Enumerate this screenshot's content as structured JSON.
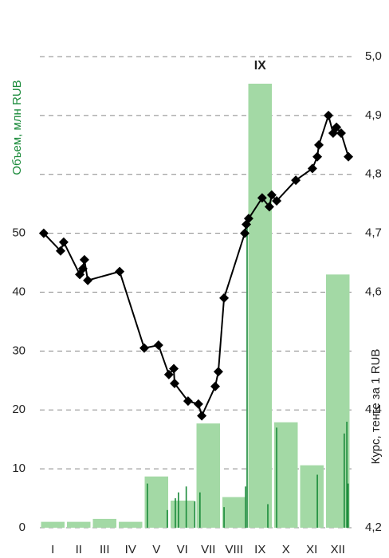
{
  "chart_data": {
    "type": "bar-line",
    "y_label": "Объем, млн RUB",
    "y2_label": "Курс, тенге за 1 RUB",
    "annotation": "IX",
    "categories": [
      "I",
      "II",
      "III",
      "IV",
      "V",
      "VI",
      "VII",
      "VIII",
      "IX",
      "X",
      "XI",
      "XII"
    ],
    "xlim": [
      0,
      12
    ],
    "ylim": [
      0,
      80
    ],
    "yticks": [
      0,
      10,
      20,
      30,
      40,
      50
    ],
    "y2lim": [
      4.2,
      5.0
    ],
    "y2ticks": [
      {
        "value": 4.2,
        "label": "4,2"
      },
      {
        "value": 4.3,
        "label": ""
      },
      {
        "value": 4.4,
        "label": "4,4"
      },
      {
        "value": 4.5,
        "label": ""
      },
      {
        "value": 4.6,
        "label": "4,6"
      },
      {
        "value": 4.7,
        "label": "4,7"
      },
      {
        "value": 4.8,
        "label": "4,8"
      },
      {
        "value": 4.9,
        "label": "4,9"
      },
      {
        "value": 5.0,
        "label": "5,0"
      }
    ],
    "grid": true,
    "monthly": {
      "color": "#a3d9a5",
      "values": [
        1.0,
        1.0,
        1.5,
        1.0,
        8.7,
        4.6,
        17.7,
        5.2,
        75.4,
        17.9,
        10.6,
        43.0
      ]
    },
    "daily": {
      "color": "#1a8a3a",
      "x": [
        4.15,
        4.92,
        5.23,
        5.35,
        5.65,
        5.98,
        6.18,
        7.11,
        7.94,
        8.0,
        8.8,
        9.14,
        10.71,
        11.75,
        11.85,
        11.9
      ],
      "values": [
        7.5,
        3,
        5,
        6,
        7,
        4.5,
        6,
        3.5,
        7,
        52,
        4,
        17,
        9,
        16,
        18,
        7.5
      ]
    },
    "rate": {
      "color": "#000",
      "axis": "y2",
      "x": [
        0.15,
        0.8,
        0.92,
        1.54,
        1.66,
        1.72,
        1.85,
        3.08,
        4.03,
        4.58,
        4.98,
        5.17,
        5.2,
        5.72,
        6.12,
        6.25,
        6.77,
        6.89,
        7.11,
        7.91,
        7.97,
        8.06,
        8.58,
        8.86,
        8.95,
        9.14,
        9.88,
        10.52,
        10.71,
        10.77,
        11.14,
        11.32,
        11.45,
        11.63,
        11.91
      ],
      "values": [
        4.7,
        4.67,
        4.685,
        4.63,
        4.64,
        4.655,
        4.62,
        4.635,
        4.505,
        4.51,
        4.46,
        4.47,
        4.445,
        4.415,
        4.41,
        4.39,
        4.44,
        4.465,
        4.59,
        4.7,
        4.715,
        4.725,
        4.76,
        4.745,
        4.765,
        4.755,
        4.79,
        4.81,
        4.83,
        4.85,
        4.9,
        4.87,
        4.88,
        4.87,
        4.83
      ]
    }
  }
}
